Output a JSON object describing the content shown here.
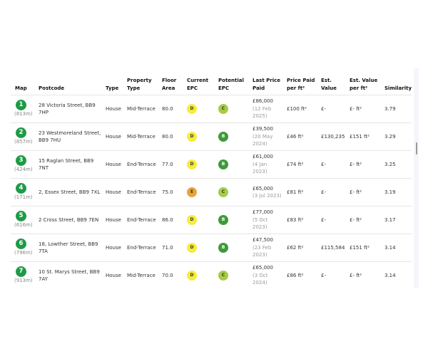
{
  "columns": [
    "Map",
    "Postcode",
    "Type",
    "Property Type",
    "Floor Area",
    "Current EPC",
    "Potential EPC",
    "Last Price Paid",
    "Price Paid per ft²",
    "Est. Value",
    "Est. Value per ft²",
    "Similarity"
  ],
  "epc_colors": {
    "B": "#3f9a3a",
    "C": "#a6cc47",
    "D": "#f6ec3a",
    "E": "#e8a53a"
  },
  "rows": [
    {
      "num": "1",
      "dist": "(813m)",
      "postcode": "28 Victoria Street, BB9 7HP",
      "type": "House",
      "property_type": "Mid-Terrace",
      "floor_area": "80.0",
      "current_epc": "D",
      "potential_epc": "C",
      "price": "£86,000",
      "date": "(12 Feb 2025)",
      "ppf": "£100 ft²",
      "est_value": "£-",
      "est_ppf": "£- ft²",
      "similarity": "3.79"
    },
    {
      "num": "2",
      "dist": "(857m)",
      "postcode": "23 Westmoreland Street, BB9 7HU",
      "type": "House",
      "property_type": "Mid-Terrace",
      "floor_area": "80.0",
      "current_epc": "D",
      "potential_epc": "B",
      "price": "£39,500",
      "date": "(20 May 2024)",
      "ppf": "£46 ft²",
      "est_value": "£130,235",
      "est_ppf": "£151 ft²",
      "similarity": "3.29"
    },
    {
      "num": "3",
      "dist": "(424m)",
      "postcode": "15 Raglan Street, BB9 7NT",
      "type": "House",
      "property_type": "End-Terrace",
      "floor_area": "77.0",
      "current_epc": "D",
      "potential_epc": "B",
      "price": "£61,000",
      "date": "(4 Jan 2023)",
      "ppf": "£74 ft²",
      "est_value": "£-",
      "est_ppf": "£- ft²",
      "similarity": "3.25"
    },
    {
      "num": "4",
      "dist": "(171m)",
      "postcode": "2, Essex Street, BB9 7XL",
      "type": "House",
      "property_type": "End-Terrace",
      "floor_area": "75.0",
      "current_epc": "E",
      "potential_epc": "C",
      "price": "£65,000",
      "date": "(3 Jul 2023)",
      "ppf": "£81 ft²",
      "est_value": "£-",
      "est_ppf": "£- ft²",
      "similarity": "3.19"
    },
    {
      "num": "5",
      "dist": "(616m)",
      "postcode": "2 Cross Street, BB9 7EN",
      "type": "House",
      "property_type": "End-Terrace",
      "floor_area": "86.0",
      "current_epc": "D",
      "potential_epc": "B",
      "price": "£77,000",
      "date": "(5 Oct 2023)",
      "ppf": "£83 ft²",
      "est_value": "£-",
      "est_ppf": "£- ft²",
      "similarity": "3.17"
    },
    {
      "num": "6",
      "dist": "(796m)",
      "postcode": "18, Lowther Street, BB9 7TA",
      "type": "House",
      "property_type": "End-Terrace",
      "floor_area": "71.0",
      "current_epc": "D",
      "potential_epc": "B",
      "price": "£47,500",
      "date": "(23 Feb 2023)",
      "ppf": "£62 ft²",
      "est_value": "£115,584",
      "est_ppf": "£151 ft²",
      "similarity": "3.14"
    },
    {
      "num": "7",
      "dist": "(913m)",
      "postcode": "10 St. Marys Street, BB9 7AY",
      "type": "House",
      "property_type": "Mid-Terrace",
      "floor_area": "70.0",
      "current_epc": "D",
      "potential_epc": "C",
      "price": "£65,000",
      "date": "(3 Oct 2024)",
      "ppf": "£86 ft²",
      "est_value": "£-",
      "est_ppf": "£- ft²",
      "similarity": "3.14"
    }
  ]
}
